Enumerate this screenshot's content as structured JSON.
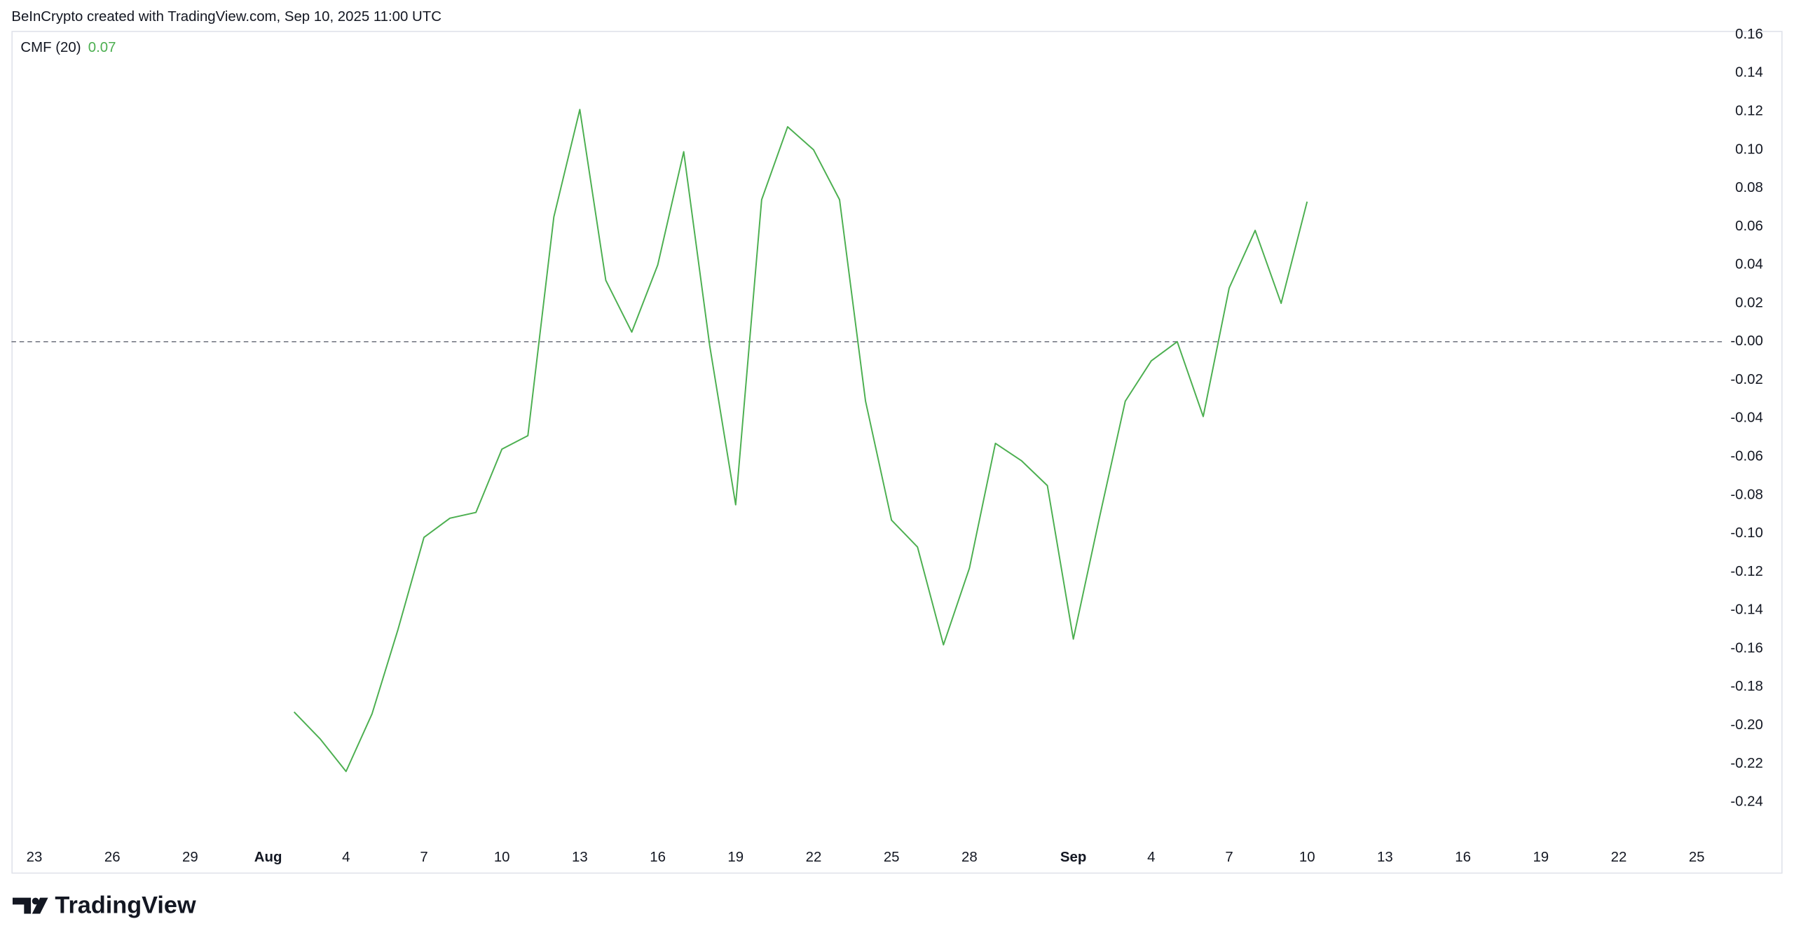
{
  "header": "BeInCrypto created with TradingView.com, Sep 10, 2025 11:00 UTC",
  "brand": "TradingView",
  "chart_data": {
    "type": "line",
    "categories": [
      "23",
      null,
      null,
      "26",
      null,
      null,
      "29",
      null,
      null,
      "Aug",
      null,
      null,
      "4",
      null,
      null,
      "7",
      null,
      null,
      "10",
      null,
      null,
      "13",
      null,
      null,
      "16",
      null,
      null,
      "19",
      null,
      null,
      "22",
      null,
      null,
      "25",
      null,
      null,
      "28",
      null,
      null,
      null,
      "Sep",
      null,
      null,
      "4",
      null,
      null,
      "7",
      null,
      null,
      "10",
      null,
      null,
      "13",
      null,
      null,
      "16",
      null,
      null,
      "19",
      null,
      null,
      "22",
      null,
      null,
      "25"
    ],
    "series": [
      {
        "name": "CMF (20)",
        "legend_value": "0.07",
        "color": "#4caf50",
        "values": [
          null,
          null,
          null,
          null,
          null,
          null,
          null,
          null,
          null,
          null,
          -0.193,
          -0.207,
          -0.224,
          -0.194,
          -0.15,
          -0.102,
          -0.092,
          -0.089,
          -0.056,
          -0.049,
          0.065,
          0.121,
          0.032,
          0.005,
          0.04,
          0.099,
          -0.002,
          -0.085,
          0.074,
          0.112,
          0.1,
          0.074,
          -0.031,
          -0.093,
          -0.107,
          -0.158,
          -0.118,
          -0.053,
          -0.062,
          -0.075,
          -0.155,
          -0.092,
          -0.031,
          -0.01,
          0.0,
          -0.039,
          0.028,
          0.058,
          0.02,
          0.073,
          null,
          null,
          null,
          null,
          null,
          null,
          null,
          null,
          null,
          null,
          null,
          null,
          null,
          null,
          null
        ]
      }
    ],
    "hline": 0,
    "ylim": [
      -0.26,
      0.162
    ],
    "yticks": [
      {
        "value": 0.16,
        "label": "0.16"
      },
      {
        "value": 0.14,
        "label": "0.14"
      },
      {
        "value": 0.12,
        "label": "0.12"
      },
      {
        "value": 0.1,
        "label": "0.10"
      },
      {
        "value": 0.08,
        "label": "0.08"
      },
      {
        "value": 0.06,
        "label": "0.06"
      },
      {
        "value": 0.04,
        "label": "0.04"
      },
      {
        "value": 0.02,
        "label": "0.02"
      },
      {
        "value": 0,
        "label": "-0.00"
      },
      {
        "value": -0.02,
        "label": "-0.02"
      },
      {
        "value": -0.04,
        "label": "-0.04"
      },
      {
        "value": -0.06,
        "label": "-0.06"
      },
      {
        "value": -0.08,
        "label": "-0.08"
      },
      {
        "value": -0.1,
        "label": "-0.10"
      },
      {
        "value": -0.12,
        "label": "-0.12"
      },
      {
        "value": -0.14,
        "label": "-0.14"
      },
      {
        "value": -0.16,
        "label": "-0.16"
      },
      {
        "value": -0.18,
        "label": "-0.18"
      },
      {
        "value": -0.2,
        "label": "-0.20"
      },
      {
        "value": -0.22,
        "label": "-0.22"
      },
      {
        "value": -0.24,
        "label": "-0.24"
      }
    ]
  }
}
